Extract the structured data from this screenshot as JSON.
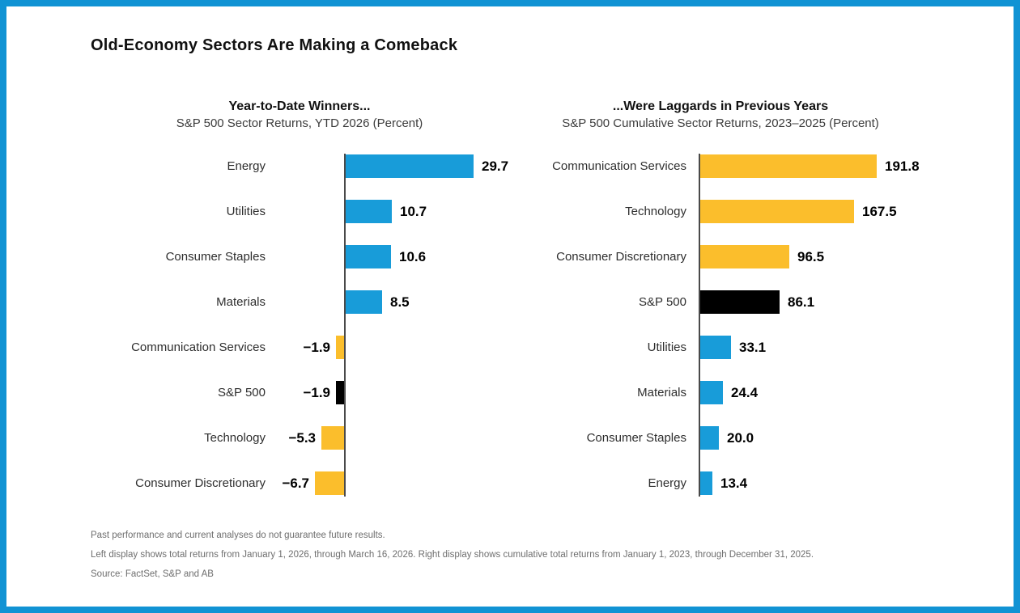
{
  "title": "Old-Economy Sectors Are Making a Comeback",
  "colors": {
    "blue": "#189CD9",
    "yellow": "#FBBE2C",
    "black": "#000000",
    "frame_border": "#1193D4",
    "axis": "#4a4a4a"
  },
  "chart_data": [
    {
      "type": "bar",
      "orientation": "horizontal",
      "title": "Year-to-Date Winners...",
      "subtitle": "S&P 500 Sector Returns, YTD 2026 (Percent)",
      "categories": [
        "Energy",
        "Utilities",
        "Consumer Staples",
        "Materials",
        "Communication Services",
        "S&P 500",
        "Technology",
        "Consumer Discretionary"
      ],
      "values": [
        29.7,
        10.7,
        10.6,
        8.5,
        -1.9,
        -1.9,
        -5.3,
        -6.7
      ],
      "value_labels": [
        "29.7",
        "10.7",
        "10.6",
        "8.5",
        "−1.9",
        "−1.9",
        "−5.3",
        "−6.7"
      ],
      "bar_colors": [
        "blue",
        "blue",
        "blue",
        "blue",
        "yellow",
        "black",
        "yellow",
        "yellow"
      ],
      "xlim": [
        -10,
        30
      ],
      "grid": false,
      "legend": "none",
      "value_label_position": "bar-end"
    },
    {
      "type": "bar",
      "orientation": "horizontal",
      "title": "...Were Laggards in Previous Years",
      "subtitle": "S&P 500 Cumulative Sector Returns, 2023–2025 (Percent)",
      "categories": [
        "Communication Services",
        "Technology",
        "Consumer Discretionary",
        "S&P 500",
        "Utilities",
        "Materials",
        "Consumer Staples",
        "Energy"
      ],
      "values": [
        191.8,
        167.5,
        96.5,
        86.1,
        33.1,
        24.4,
        20.0,
        13.4
      ],
      "value_labels": [
        "191.8",
        "167.5",
        "96.5",
        "86.1",
        "33.1",
        "24.4",
        "20.0",
        "13.4"
      ],
      "bar_colors": [
        "yellow",
        "yellow",
        "yellow",
        "black",
        "blue",
        "blue",
        "blue",
        "blue"
      ],
      "xlim": [
        0,
        200
      ],
      "grid": false,
      "legend": "none",
      "value_label_position": "bar-end"
    }
  ],
  "footnotes": [
    "Past performance and current analyses do not guarantee future results.",
    "Left display shows total returns from January 1, 2026, through March 16, 2026. Right display shows cumulative total returns from January 1, 2023, through December 31, 2025.",
    "Source: FactSet, S&P and AB"
  ]
}
